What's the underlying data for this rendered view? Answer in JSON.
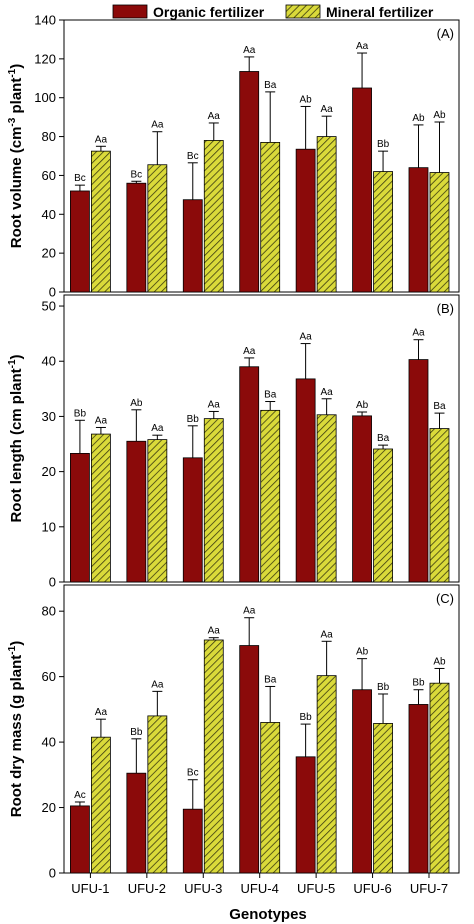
{
  "colors": {
    "organic": "#8b0a0a",
    "mineral_fill": "#dada3a",
    "mineral_hatch": "#3a3a10"
  },
  "legend": {
    "organic_label": "Organic fertilizer",
    "mineral_label": "Mineral fertilizer"
  },
  "chart_data": [
    {
      "type": "bar",
      "panel": "(A)",
      "ylabel": "Root volume (cm",
      "ylabel_sup": "-3",
      "ylabel_mid": " plant",
      "ylabel_sup2": "-1",
      "ylabel_end": ")",
      "ylim": [
        0,
        140
      ],
      "yticks": [
        0,
        20,
        40,
        60,
        80,
        100,
        120,
        140
      ],
      "categories": [
        "UFU-1",
        "UFU-2",
        "UFU-3",
        "UFU-4",
        "UFU-5",
        "UFU-6",
        "UFU-7"
      ],
      "series": [
        {
          "name": "Organic fertilizer",
          "values": [
            52,
            56,
            47.5,
            113.5,
            73.5,
            105,
            64
          ],
          "errors": [
            3,
            1,
            19,
            7.5,
            22,
            18,
            22
          ],
          "labels": [
            "Bc",
            "Bc",
            "Bc",
            "Aa",
            "Ab",
            "Aa",
            "Ab"
          ]
        },
        {
          "name": "Mineral fertilizer",
          "values": [
            72.5,
            65.5,
            78,
            77,
            80,
            62,
            61.5
          ],
          "errors": [
            2.5,
            17,
            9,
            26,
            10.5,
            10.5,
            26
          ],
          "labels": [
            "Aa",
            "Aa",
            "Aa",
            "Ba",
            "Aa",
            "Bb",
            "Ab"
          ]
        }
      ]
    },
    {
      "type": "bar",
      "panel": "(B)",
      "ylabel": "Root length  (cm plant",
      "ylabel_sup": "-1",
      "ylabel_mid": "",
      "ylabel_sup2": "",
      "ylabel_end": ")",
      "ylim": [
        0,
        52
      ],
      "yticks": [
        0,
        10,
        20,
        30,
        40,
        50
      ],
      "categories": [
        "UFU-1",
        "UFU-2",
        "UFU-3",
        "UFU-4",
        "UFU-5",
        "UFU-6",
        "UFU-7"
      ],
      "series": [
        {
          "name": "Organic fertilizer",
          "values": [
            23.3,
            25.5,
            22.5,
            39,
            36.8,
            30.1,
            40.3
          ],
          "errors": [
            6,
            5.7,
            5.8,
            1.6,
            6.4,
            0.7,
            3.6
          ],
          "labels": [
            "Bb",
            "Ab",
            "Bb",
            "Aa",
            "Aa",
            "Ab",
            "Aa"
          ]
        },
        {
          "name": "Mineral fertilizer",
          "values": [
            26.8,
            25.8,
            29.6,
            31.1,
            30.3,
            24.1,
            27.8
          ],
          "errors": [
            1.2,
            0.8,
            1.3,
            1.6,
            2.9,
            0.7,
            2.8
          ],
          "labels": [
            "Aa",
            "Aa",
            "Aa",
            "Ba",
            "Aa",
            "Ba",
            "Ba"
          ]
        }
      ]
    },
    {
      "type": "bar",
      "panel": "(C)",
      "ylabel": "Root dry mass  (g plant",
      "ylabel_sup": "-1",
      "ylabel_mid": "",
      "ylabel_sup2": "",
      "ylabel_end": ")",
      "ylim": [
        0,
        88
      ],
      "yticks": [
        0,
        20,
        40,
        60,
        80
      ],
      "xlabel": "Genotypes",
      "categories": [
        "UFU-1",
        "UFU-2",
        "UFU-3",
        "UFU-4",
        "UFU-5",
        "UFU-6",
        "UFU-7"
      ],
      "series": [
        {
          "name": "Organic fertilizer",
          "values": [
            20.5,
            30.5,
            19.5,
            69.5,
            35.5,
            56,
            51.5
          ],
          "errors": [
            1.2,
            10.5,
            9,
            8.5,
            10,
            9.5,
            4.5
          ],
          "labels": [
            "Ac",
            "Bb",
            "Bc",
            "Aa",
            "Bb",
            "Ab",
            "Bb"
          ]
        },
        {
          "name": "Mineral fertilizer",
          "values": [
            41.5,
            48,
            71.2,
            46,
            60.3,
            45.7,
            58
          ],
          "errors": [
            5.5,
            7.5,
            0.7,
            11,
            10.5,
            9,
            4.5
          ],
          "labels": [
            "Aa",
            "Aa",
            "Aa",
            "Ba",
            "Aa",
            "Bb",
            "Ab"
          ]
        }
      ]
    }
  ]
}
